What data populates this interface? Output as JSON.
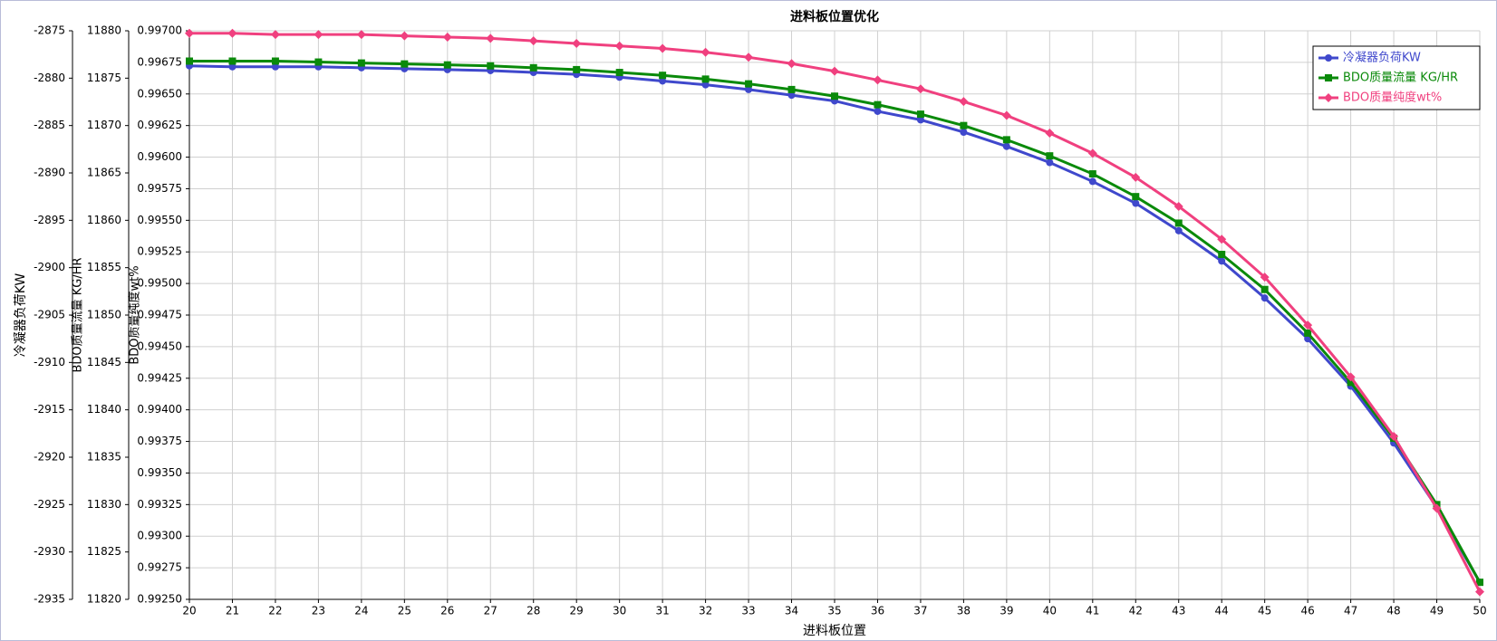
{
  "chart_data": {
    "type": "line",
    "title": "进料板位置优化",
    "xlabel": "进料板位置",
    "ylabel": "冷凝器负荷KW",
    "y2label": "BDO质量流量 KG/HR",
    "y3label": "BDO质量纯度wt%",
    "x": [
      20,
      21,
      22,
      23,
      24,
      25,
      26,
      27,
      28,
      29,
      30,
      31,
      32,
      33,
      34,
      35,
      36,
      37,
      38,
      39,
      40,
      41,
      42,
      43,
      44,
      45,
      46,
      47,
      48,
      49,
      50
    ],
    "xlim": [
      20,
      50
    ],
    "xticks": [
      20,
      21,
      22,
      23,
      24,
      25,
      26,
      27,
      28,
      29,
      30,
      31,
      32,
      33,
      34,
      35,
      36,
      37,
      38,
      39,
      40,
      41,
      42,
      43,
      44,
      45,
      46,
      47,
      48,
      49,
      50
    ],
    "ylim": [
      -2935,
      -2875
    ],
    "yticks": [
      -2935,
      -2930,
      -2925,
      -2920,
      -2915,
      -2910,
      -2905,
      -2900,
      -2895,
      -2890,
      -2885,
      -2880,
      -2875
    ],
    "y2lim": [
      11820,
      11880
    ],
    "y2ticks": [
      11820,
      11825,
      11830,
      11835,
      11840,
      11845,
      11850,
      11855,
      11860,
      11865,
      11870,
      11875,
      11880
    ],
    "y3lim": [
      0.9925,
      0.997
    ],
    "y3ticks": [
      {
        "value": 0.9925,
        "label": "0.99250"
      },
      0.99275,
      {
        "value": 0.993,
        "label": "0.99300"
      },
      0.99325,
      {
        "value": 0.9935,
        "label": "0.99350"
      },
      0.99375,
      {
        "value": 0.994,
        "label": "0.99400"
      },
      0.99425,
      {
        "value": 0.9945,
        "label": "0.99450"
      },
      0.99475,
      {
        "value": 0.995,
        "label": "0.99500"
      },
      0.99525,
      {
        "value": 0.9955,
        "label": "0.99550"
      },
      0.99575,
      {
        "value": 0.996,
        "label": "0.99600"
      },
      0.99625,
      {
        "value": 0.9965,
        "label": "0.99650"
      },
      0.99675,
      {
        "value": 0.997,
        "label": "0.99700"
      }
    ],
    "grid": true,
    "legend": "upper right",
    "series": [
      {
        "name": "冷凝器负荷KW",
        "color": "#3f48cc",
        "marker": "circle",
        "axis": "y",
        "values": [
          -2878.7,
          -2878.8,
          -2878.8,
          -2878.8,
          -2878.9,
          -2879.0,
          -2879.1,
          -2879.2,
          -2879.4,
          -2879.6,
          -2879.9,
          -2880.3,
          -2880.7,
          -2881.2,
          -2881.8,
          -2882.4,
          -2883.5,
          -2884.4,
          -2885.7,
          -2887.2,
          -2888.9,
          -2890.9,
          -2893.2,
          -2896.1,
          -2899.3,
          -2903.2,
          -2907.5,
          -2912.5,
          -2918.5,
          -2925.3,
          -2933.2
        ]
      },
      {
        "name": "BDO质量流量 KG/HR",
        "color": "#0a8a0a",
        "marker": "square",
        "axis": "y2",
        "values": [
          11876.8,
          11876.8,
          11876.8,
          11876.7,
          11876.6,
          11876.5,
          11876.4,
          11876.3,
          11876.1,
          11875.9,
          11875.6,
          11875.3,
          11874.9,
          11874.4,
          11873.8,
          11873.1,
          11872.2,
          11871.2,
          11870.0,
          11868.5,
          11866.8,
          11864.9,
          11862.5,
          11859.7,
          11856.4,
          11852.7,
          11848.1,
          11842.9,
          11837.0,
          11830.0,
          11821.8
        ]
      },
      {
        "name": "BDO质量纯度wt%",
        "color": "#f0407f",
        "marker": "diamond",
        "axis": "y3",
        "values": [
          0.99698,
          0.99698,
          0.99697,
          0.99697,
          0.99697,
          0.99696,
          0.99695,
          0.99694,
          0.99692,
          0.9969,
          0.99688,
          0.99686,
          0.99683,
          0.99679,
          0.99674,
          0.99668,
          0.99661,
          0.99654,
          0.99644,
          0.99633,
          0.99619,
          0.99603,
          0.99584,
          0.99561,
          0.99535,
          0.99505,
          0.99467,
          0.99426,
          0.99379,
          0.99322,
          0.99256
        ]
      }
    ]
  }
}
